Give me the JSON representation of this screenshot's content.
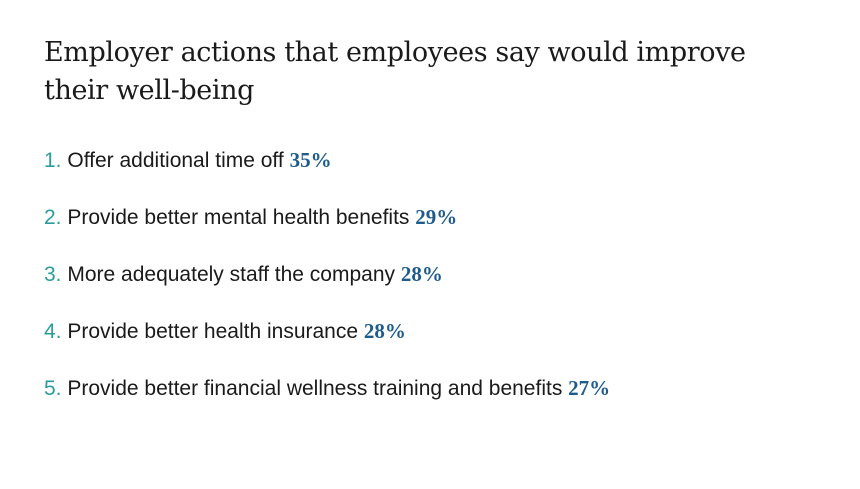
{
  "title": "Employer actions that employees say would improve their well-being",
  "items": [
    {
      "number": "1.",
      "text": "Offer additional time off",
      "percent": "35%"
    },
    {
      "number": "2.",
      "text": "Provide better mental health benefits",
      "percent": "29%"
    },
    {
      "number": "3.",
      "text": "More adequately staff the company",
      "percent": "28%"
    },
    {
      "number": "4.",
      "text": "Provide better health insurance",
      "percent": "28%"
    },
    {
      "number": "5.",
      "text": "Provide better financial wellness training and benefits",
      "percent": "27%"
    }
  ],
  "colors": {
    "number": "#2a9d9a",
    "percent": "#1f5c8c",
    "text": "#1a1a1a",
    "background": "#ffffff"
  }
}
